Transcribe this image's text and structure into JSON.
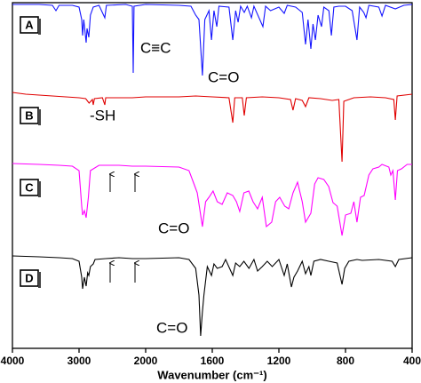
{
  "chart_data": {
    "type": "line",
    "x_label": "Wavenumber (cm⁻¹)",
    "xlim": [
      4000,
      400
    ],
    "xticks": [
      4000,
      3000,
      2000,
      1600,
      1200,
      800,
      400
    ],
    "ylim": [
      0,
      389
    ],
    "annotations": [
      "C≡C",
      "C=O",
      "-SH",
      "C=O",
      "C=O"
    ],
    "series": [
      {
        "name": "A",
        "color": "#1414ff",
        "x": [
          4000,
          3600,
          3400,
          3347,
          3300,
          3100,
          3000,
          2960,
          2947,
          2930,
          2893,
          2880,
          2853,
          2830,
          2787,
          2700,
          2613,
          2590,
          2300,
          2200,
          2187,
          2175,
          2000,
          1800,
          1728,
          1700,
          1680,
          1659,
          1645,
          1620,
          1605,
          1590,
          1573,
          1560,
          1500,
          1477,
          1460,
          1445,
          1430,
          1408,
          1390,
          1365,
          1350,
          1296,
          1280,
          1250,
          1200,
          1168,
          1150,
          1100,
          1060,
          1040,
          1025,
          1008,
          995,
          981,
          965,
          944,
          930,
          900,
          885,
          870,
          840,
          800,
          760,
          731,
          715,
          690,
          677,
          660,
          600,
          581,
          560,
          501,
          450,
          400
        ],
        "values": [
          387,
          387,
          386,
          380,
          386,
          386,
          384,
          370,
          352,
          370,
          344,
          360,
          350,
          375,
          384,
          386,
          372,
          386,
          387,
          385,
          310,
          385,
          387,
          386,
          385,
          375,
          370,
          307,
          370,
          380,
          347,
          380,
          362,
          385,
          384,
          347,
          380,
          367,
          385,
          378,
          385,
          372,
          385,
          362,
          385,
          380,
          384,
          377,
          386,
          384,
          378,
          342,
          370,
          337,
          365,
          347,
          375,
          362,
          384,
          380,
          352,
          384,
          385,
          385,
          380,
          347,
          384,
          378,
          372,
          386,
          384,
          374,
          386,
          382,
          386,
          387
        ]
      },
      {
        "name": "B",
        "color": "#e00000",
        "x": [
          4000,
          3800,
          3600,
          3400,
          3200,
          3000,
          2900,
          2850,
          2800,
          2787,
          2770,
          2650,
          2613,
          2600,
          2400,
          2200,
          2000,
          1800,
          1700,
          1600,
          1500,
          1477,
          1465,
          1420,
          1408,
          1395,
          1300,
          1200,
          1130,
          1115,
          1100,
          1060,
          1040,
          1020,
          950,
          880,
          840,
          821,
          810,
          750,
          650,
          560,
          510,
          501,
          490,
          400
        ],
        "values": [
          288,
          286,
          285,
          284,
          283,
          282,
          281,
          276,
          280,
          274,
          281,
          282,
          274,
          282,
          282,
          282,
          283,
          283,
          284,
          283,
          282,
          254,
          282,
          282,
          262,
          282,
          283,
          282,
          280,
          268,
          281,
          279,
          272,
          282,
          281,
          279,
          280,
          210,
          278,
          282,
          283,
          282,
          280,
          257,
          284,
          286
        ]
      },
      {
        "name": "C",
        "color": "#ff00ff",
        "x": [
          4000,
          3600,
          3300,
          3100,
          3000,
          2960,
          2947,
          2920,
          2893,
          2860,
          2830,
          2700,
          2400,
          2200,
          2000,
          1800,
          1740,
          1710,
          1690,
          1659,
          1640,
          1620,
          1595,
          1570,
          1541,
          1510,
          1477,
          1455,
          1435,
          1410,
          1381,
          1355,
          1328,
          1300,
          1275,
          1243,
          1220,
          1195,
          1165,
          1141,
          1115,
          1088,
          1060,
          1040,
          1008,
          985,
          965,
          930,
          901,
          875,
          850,
          821,
          800,
          768,
          750,
          731,
          710,
          688,
          660,
          635,
          600,
          581,
          540,
          528,
          515,
          501,
          488,
          464,
          430,
          400
        ],
        "values": [
          208,
          207,
          206,
          205,
          200,
          160,
          150,
          155,
          147,
          170,
          200,
          206,
          206,
          205,
          205,
          204,
          200,
          185,
          175,
          137,
          165,
          170,
          177,
          165,
          162,
          175,
          172,
          165,
          154,
          175,
          177,
          165,
          157,
          170,
          137,
          142,
          165,
          170,
          160,
          157,
          175,
          187,
          165,
          142,
          152,
          185,
          192,
          190,
          182,
          164,
          160,
          127,
          150,
          152,
          165,
          142,
          170,
          172,
          195,
          202,
          204,
          207,
          204,
          195,
          200,
          167,
          200,
          202,
          207,
          207
        ]
      },
      {
        "name": "D",
        "color": "#000000",
        "x": [
          4000,
          3600,
          3300,
          3100,
          3000,
          2960,
          2947,
          2920,
          2893,
          2870,
          2853,
          2830,
          2787,
          2760,
          2600,
          2400,
          2200,
          2000,
          1800,
          1740,
          1700,
          1680,
          1670,
          1660,
          1650,
          1630,
          1605,
          1590,
          1570,
          1541,
          1520,
          1477,
          1460,
          1435,
          1410,
          1380,
          1350,
          1328,
          1300,
          1270,
          1240,
          1200,
          1168,
          1150,
          1125,
          1110,
          1088,
          1060,
          1040,
          1020,
          1008,
          990,
          950,
          900,
          850,
          821,
          805,
          780,
          731,
          700,
          600,
          520,
          501,
          480,
          400
        ],
        "values": [
          104,
          103,
          102,
          101,
          98,
          80,
          67,
          80,
          70,
          85,
          82,
          92,
          95,
          100,
          101,
          102,
          101,
          101,
          102,
          100,
          90,
          60,
          14,
          40,
          60,
          92,
          82,
          95,
          90,
          92,
          100,
          82,
          96,
          92,
          98,
          90,
          100,
          87,
          92,
          98,
          92,
          100,
          82,
          95,
          69,
          80,
          87,
          98,
          84,
          92,
          82,
          98,
          100,
          98,
          96,
          72,
          90,
          98,
          100,
          99,
          100,
          98,
          92,
          100,
          102
        ]
      }
    ]
  }
}
